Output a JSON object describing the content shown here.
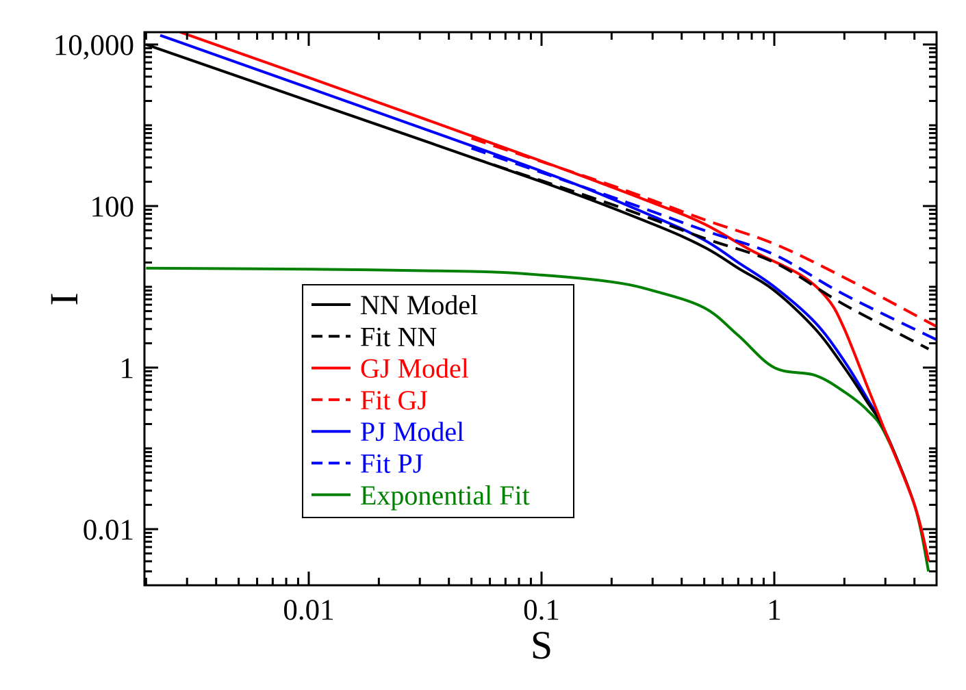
{
  "chart_data": {
    "type": "line",
    "title": "",
    "xlabel": "S",
    "ylabel": "I",
    "xscale": "log",
    "yscale": "log",
    "xlim": [
      0.002,
      5
    ],
    "ylim": [
      0.0025,
      15000
    ],
    "grid": false,
    "legend_position": "lower-left-center",
    "x_ticks": [
      {
        "value": 0.01,
        "label": "0.01"
      },
      {
        "value": 0.1,
        "label": "0.1"
      },
      {
        "value": 1,
        "label": "1"
      }
    ],
    "y_ticks": [
      {
        "value": 0.01,
        "label": "0.01"
      },
      {
        "value": 1,
        "label": "1"
      },
      {
        "value": 100,
        "label": "100"
      },
      {
        "value": 10000,
        "label": "10,000"
      }
    ],
    "series": [
      {
        "name": "NN Model",
        "color": "#000000",
        "dash": "solid",
        "points": [
          [
            0.002,
            10000
          ],
          [
            0.01,
            2000
          ],
          [
            0.1,
            200
          ],
          [
            0.3,
            60
          ],
          [
            0.5,
            31
          ],
          [
            0.7,
            17
          ],
          [
            1,
            9
          ],
          [
            1.5,
            3
          ],
          [
            2,
            1
          ],
          [
            2.5,
            0.38
          ],
          [
            3,
            0.16
          ],
          [
            4,
            0.02
          ],
          [
            4.6,
            0.004
          ]
        ]
      },
      {
        "name": "Fit NN",
        "color": "#000000",
        "dash": "dashed",
        "points": [
          [
            0.05,
            400
          ],
          [
            0.2,
            105
          ],
          [
            0.5,
            40
          ],
          [
            1,
            20
          ],
          [
            2,
            6
          ],
          [
            4.6,
            1.7
          ]
        ]
      },
      {
        "name": "GJ Model",
        "color": "#ff0000",
        "dash": "solid",
        "points": [
          [
            0.0025,
            16000
          ],
          [
            0.01,
            3900
          ],
          [
            0.1,
            360
          ],
          [
            0.3,
            110
          ],
          [
            0.5,
            60
          ],
          [
            0.8,
            28
          ],
          [
            1.3,
            14
          ],
          [
            1.7,
            7
          ],
          [
            2,
            3
          ],
          [
            2.5,
            0.6
          ],
          [
            3,
            0.16
          ],
          [
            4,
            0.02
          ],
          [
            4.6,
            0.004
          ]
        ]
      },
      {
        "name": "Fit GJ",
        "color": "#ff0000",
        "dash": "dashed",
        "points": [
          [
            0.05,
            690
          ],
          [
            0.2,
            180
          ],
          [
            0.5,
            68
          ],
          [
            1,
            34
          ],
          [
            2,
            13
          ],
          [
            5,
            3.2
          ]
        ]
      },
      {
        "name": "PJ Model",
        "color": "#0000ff",
        "dash": "solid",
        "points": [
          [
            0.0023,
            13000
          ],
          [
            0.01,
            2900
          ],
          [
            0.1,
            270
          ],
          [
            0.3,
            75
          ],
          [
            0.5,
            38
          ],
          [
            0.7,
            20
          ],
          [
            1,
            10
          ],
          [
            1.5,
            3.6
          ],
          [
            2,
            1.2
          ],
          [
            2.5,
            0.42
          ],
          [
            3,
            0.16
          ],
          [
            4,
            0.02
          ],
          [
            4.6,
            0.004
          ]
        ]
      },
      {
        "name": "Fit PJ",
        "color": "#0000ff",
        "dash": "dashed",
        "points": [
          [
            0.05,
            520
          ],
          [
            0.2,
            130
          ],
          [
            0.5,
            50
          ],
          [
            1,
            25
          ],
          [
            2,
            8
          ],
          [
            5,
            2.2
          ]
        ]
      },
      {
        "name": "Exponential Fit",
        "color": "#008000",
        "dash": "solid",
        "points": [
          [
            0.002,
            17
          ],
          [
            0.01,
            16.5
          ],
          [
            0.05,
            15.5
          ],
          [
            0.1,
            14
          ],
          [
            0.2,
            11.5
          ],
          [
            0.3,
            9
          ],
          [
            0.5,
            5.5
          ],
          [
            0.7,
            2.5
          ],
          [
            1,
            1
          ],
          [
            1.5,
            0.8
          ],
          [
            2,
            0.5
          ],
          [
            2.5,
            0.3
          ],
          [
            3,
            0.15
          ],
          [
            4,
            0.02
          ],
          [
            4.6,
            0.003
          ]
        ]
      }
    ]
  }
}
